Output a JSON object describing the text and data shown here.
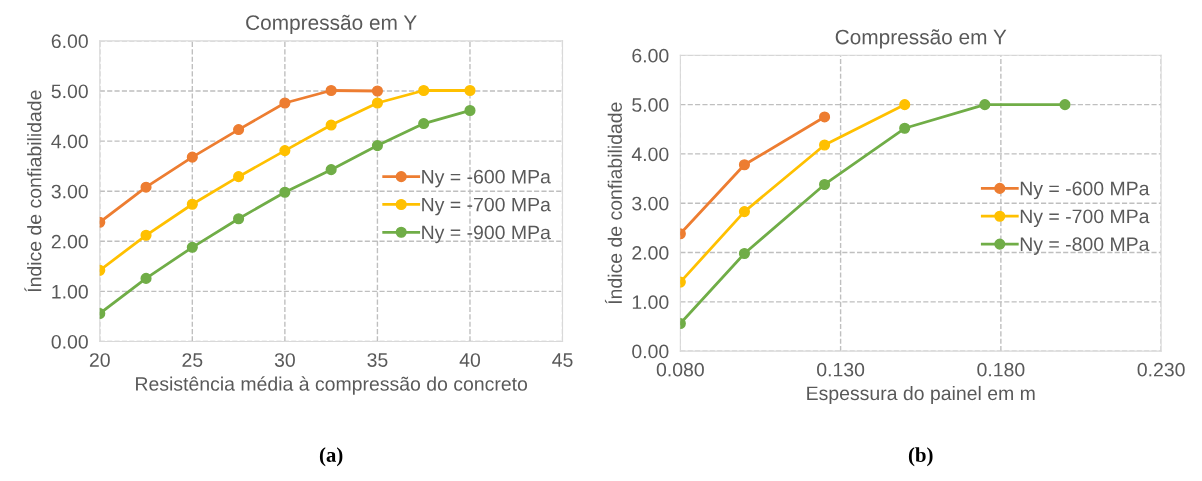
{
  "chart_data": [
    {
      "type": "line",
      "title": "Compressão em Y",
      "xlabel": "Resistência média à compressão do concreto",
      "ylabel": "Índice de confiabilidade",
      "x": [
        20,
        22.5,
        25,
        27.5,
        30,
        32.5,
        35,
        37.5,
        40
      ],
      "series": [
        {
          "name": "Ny = -600 MPa",
          "color": "#ed7d31",
          "values": [
            2.38,
            3.08,
            3.68,
            4.23,
            4.76,
            5.01,
            5.0,
            null,
            null
          ]
        },
        {
          "name": "Ny = -700 MPa",
          "color": "#ffc000",
          "values": [
            1.42,
            2.12,
            2.74,
            3.29,
            3.81,
            4.32,
            4.76,
            5.01,
            5.01
          ]
        },
        {
          "name": "Ny = -900 MPa",
          "color": "#70ad47",
          "values": [
            0.56,
            1.26,
            1.88,
            2.45,
            2.98,
            3.43,
            3.91,
            4.35,
            4.61
          ]
        }
      ],
      "xlim": [
        20,
        45
      ],
      "xticks": [
        20,
        25,
        30,
        35,
        40,
        45
      ],
      "ylim": [
        0,
        6
      ],
      "yticks": [
        {
          "value": 0,
          "label": "0.00"
        },
        {
          "value": 1,
          "label": "1.00"
        },
        {
          "value": 2,
          "label": "2.00"
        },
        {
          "value": 3,
          "label": "3.00"
        },
        {
          "value": 4,
          "label": "4.00"
        },
        {
          "value": 5,
          "label": "5.00"
        },
        {
          "value": 6,
          "label": "6.00"
        }
      ],
      "grid": true,
      "legend": "right",
      "marker": "circle",
      "line_style": "solid",
      "annotations": [
        "(a)"
      ]
    },
    {
      "type": "line",
      "title": "Compressão em Y",
      "xlabel": "Espessura do painel em m",
      "ylabel": "Índice de confiabilidade",
      "x": [
        0.08,
        0.1,
        0.125,
        0.15,
        0.175,
        0.2
      ],
      "series": [
        {
          "name": "Ny = -600 MPa",
          "color": "#ed7d31",
          "values": [
            2.38,
            3.78,
            4.75,
            null,
            null,
            null
          ]
        },
        {
          "name": "Ny = -700 MPa",
          "color": "#ffc000",
          "values": [
            1.4,
            2.83,
            4.18,
            5.0,
            null,
            null
          ]
        },
        {
          "name": "Ny = -800 MPa",
          "color": "#70ad47",
          "values": [
            0.56,
            1.98,
            3.38,
            4.52,
            5.0,
            5.0
          ]
        }
      ],
      "xlim": [
        0.08,
        0.23
      ],
      "xticks": [
        {
          "value": 0.08,
          "label": "0.080"
        },
        {
          "value": 0.13,
          "label": "0.130"
        },
        {
          "value": 0.18,
          "label": "0.180"
        },
        {
          "value": 0.23,
          "label": "0.230"
        }
      ],
      "ylim": [
        0,
        6
      ],
      "yticks": [
        {
          "value": 0,
          "label": "0.00"
        },
        {
          "value": 1,
          "label": "1.00"
        },
        {
          "value": 2,
          "label": "2.00"
        },
        {
          "value": 3,
          "label": "3.00"
        },
        {
          "value": 4,
          "label": "4.00"
        },
        {
          "value": 5,
          "label": "5.00"
        },
        {
          "value": 6,
          "label": "6.00"
        }
      ],
      "grid": true,
      "legend": "right",
      "marker": "circle",
      "line_style": "solid",
      "annotations": [
        "(b)"
      ]
    }
  ]
}
